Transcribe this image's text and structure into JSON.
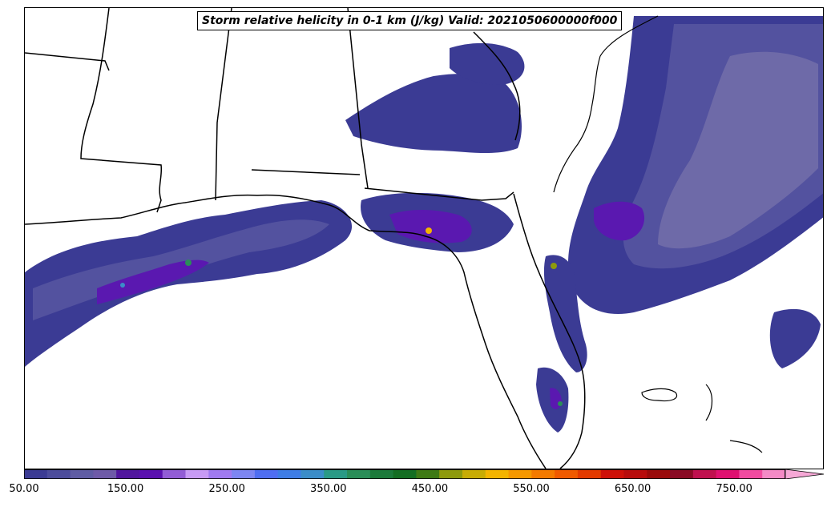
{
  "title": "Storm relative helicity in 0-1 km (J/kg) Valid: 2021050600000f000",
  "colorbar": {
    "tick_labels": [
      "50.00",
      "150.00",
      "250.00",
      "350.00",
      "450.00",
      "550.00",
      "650.00",
      "750.00"
    ],
    "colors": [
      "#3b3b94",
      "#4c4c9c",
      "#5f5ca4",
      "#6e5aa8",
      "#51169e",
      "#5a10b0",
      "#925cd6",
      "#c79af5",
      "#a07af0",
      "#7d86f2",
      "#4f6ef2",
      "#3e7de6",
      "#3b8dc8",
      "#2a9a86",
      "#2a8e58",
      "#1c7a3a",
      "#146e22",
      "#3e7a14",
      "#8e9a0c",
      "#c8ac04",
      "#f4b400",
      "#f69800",
      "#f47a00",
      "#f05a00",
      "#e43a00",
      "#cf1008",
      "#b80c0c",
      "#9a0a0a",
      "#8a0a24",
      "#c0104e",
      "#e01070",
      "#f24aa0",
      "#f48ac6",
      "#f6a8d6"
    ]
  },
  "map": {
    "region": "Southeastern United States / Florida",
    "field_colors": {
      "level1": "#3b3b94",
      "level2": "#53529f",
      "level3": "#6e6aa8",
      "level4": "#5a18b0",
      "level5": "#925cd6",
      "level6": "#c79af5"
    },
    "coastline_color": "#000000"
  }
}
